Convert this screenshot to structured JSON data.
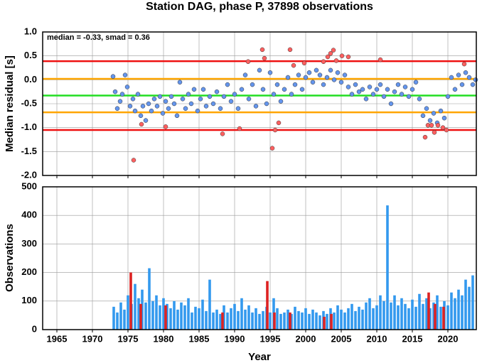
{
  "chart_data": [
    {
      "type": "scatter",
      "title": "Station DAG, phase P, 37898 observations",
      "ylabel": "Median residual [s]",
      "annotation": "median = -0.33, smad = 0.36",
      "xlim": [
        1963,
        2024
      ],
      "xticks": [
        1965,
        1970,
        1975,
        1980,
        1985,
        1990,
        1995,
        2000,
        2005,
        2010,
        2015,
        2020
      ],
      "ylim": [
        -2,
        1
      ],
      "yticks": [
        {
          "value": -2,
          "label": "-2.0"
        },
        {
          "value": -1.5,
          "label": "-1.5"
        },
        {
          "value": -1,
          "label": "-1.0"
        },
        {
          "value": -0.5,
          "label": "-0.5"
        },
        {
          "value": 0,
          "label": "0.0"
        },
        {
          "value": 0.5,
          "label": "0.5"
        },
        {
          "value": 1,
          "label": "1.0"
        }
      ],
      "grid": true,
      "hlines": [
        {
          "value": 0.39,
          "color": "#ee1111"
        },
        {
          "value": 0.02,
          "color": "#ffa500"
        },
        {
          "value": -0.33,
          "color": "#22dd22"
        },
        {
          "value": -0.68,
          "color": "#ffa500"
        },
        {
          "value": -1.05,
          "color": "#ee1111"
        }
      ],
      "series": [
        {
          "color": "#6495ed",
          "x": [
            1972.9,
            1973.2,
            1973.5,
            1973.9,
            1974.2,
            1974.6,
            1974.9,
            1975.3,
            1975.7,
            1976.0,
            1976.4,
            1976.8,
            1977.1,
            1977.5,
            1977.9,
            1978.3,
            1978.7,
            1979.1,
            1979.5,
            1979.9,
            1980.3,
            1980.7,
            1981.1,
            1981.5,
            1981.9,
            1982.3,
            1982.7,
            1983.1,
            1983.5,
            1983.9,
            1984.3,
            1984.8,
            1985.2,
            1985.6,
            1986.0,
            1986.5,
            1987.0,
            1987.5,
            1988.0,
            1988.5,
            1989.0,
            1989.5,
            1990.0,
            1990.5,
            1991.0,
            1991.5,
            1992.0,
            1992.5,
            1993.0,
            1993.5,
            1994.0,
            1994.5,
            1995.0,
            1995.5,
            1996.0,
            1996.5,
            1997.0,
            1997.5,
            1998.0,
            1998.5,
            1999.0,
            1999.5,
            2000.0,
            2000.5,
            2001.0,
            2001.5,
            2002.0,
            2002.5,
            2003.0,
            2003.5,
            2004.0,
            2004.5,
            2005.0,
            2005.5,
            2006.0,
            2006.5,
            2007.0,
            2007.5,
            2008.0,
            2008.5,
            2009.0,
            2009.5,
            2010.0,
            2010.5,
            2011.0,
            2011.5,
            2012.0,
            2012.5,
            2013.0,
            2013.5,
            2014.0,
            2014.5,
            2015.0,
            2015.5,
            2016.0,
            2016.5,
            2017.0,
            2017.5,
            2018.0,
            2018.5,
            2019.0,
            2019.5,
            2020.0,
            2020.5,
            2021.0,
            2021.5,
            2022.0,
            2022.5,
            2023.0,
            2023.5,
            2023.9
          ],
          "values": [
            0.07,
            -0.25,
            -0.6,
            -0.45,
            -0.3,
            0.1,
            -0.15,
            -0.55,
            -0.4,
            -0.65,
            -0.3,
            -0.75,
            -0.55,
            -0.85,
            -0.5,
            -0.65,
            -0.4,
            -0.55,
            -0.35,
            -0.7,
            -0.45,
            -0.6,
            -0.35,
            -0.5,
            -0.75,
            -0.05,
            -0.4,
            -0.6,
            -0.3,
            -0.5,
            -0.2,
            -0.65,
            -0.4,
            -0.2,
            -0.55,
            -0.35,
            -0.5,
            -0.25,
            -0.6,
            -0.35,
            -0.1,
            -0.45,
            -0.3,
            -0.6,
            -0.2,
            0.1,
            -0.4,
            -0.1,
            -0.55,
            0.2,
            -0.2,
            -0.5,
            0.15,
            -0.3,
            -0.1,
            -0.45,
            -0.2,
            0.05,
            -0.3,
            -0.1,
            0.1,
            -0.2,
            0.05,
            0.15,
            -0.05,
            0.2,
            0.1,
            -0.1,
            0.05,
            0.2,
            0.0,
            0.15,
            -0.05,
            0.1,
            -0.15,
            -0.3,
            -0.1,
            -0.25,
            -0.2,
            -0.4,
            -0.15,
            -0.3,
            -0.2,
            -0.1,
            -0.35,
            -0.2,
            -0.5,
            -0.25,
            -0.1,
            -0.3,
            -0.15,
            -0.35,
            -0.2,
            -0.05,
            -0.4,
            -0.75,
            -0.6,
            -0.85,
            -0.7,
            -0.9,
            -0.65,
            -0.8,
            -0.35,
            0.05,
            -0.2,
            0.1,
            -0.1,
            0.15,
            0.05,
            -0.1,
            0.0
          ]
        },
        {
          "color": "#ff6060",
          "x": [
            1975.8,
            1976.9,
            1980.3,
            1988.3,
            1990.7,
            1991.9,
            1993.9,
            1994.2,
            1995.3,
            1995.7,
            1996.2,
            1997.8,
            1998.3,
            1999.8,
            2002.5,
            2003.1,
            2003.5,
            2003.9,
            2004.3,
            2005.1,
            2006.0,
            2010.5,
            2016.8,
            2017.2,
            2017.7,
            2018.1,
            2018.6,
            2019.3,
            2019.8,
            2022.3
          ],
          "values": [
            -1.68,
            -0.93,
            -0.98,
            -1.13,
            -1.02,
            0.38,
            0.63,
            0.45,
            -1.43,
            -1.05,
            -0.9,
            0.63,
            0.3,
            0.35,
            0.38,
            0.48,
            0.55,
            0.62,
            0.4,
            0.5,
            0.48,
            0.42,
            -1.2,
            -0.95,
            -0.95,
            -1.1,
            -0.95,
            -1.0,
            -1.05,
            0.33
          ]
        }
      ]
    },
    {
      "type": "bar",
      "ylabel": "Observations",
      "xlabel": "Year",
      "xlim": [
        1963,
        2024
      ],
      "xticks": [
        1965,
        1970,
        1975,
        1980,
        1985,
        1990,
        1995,
        2000,
        2005,
        2010,
        2015,
        2020
      ],
      "ylim": [
        0,
        500
      ],
      "yticks": [
        0,
        100,
        200,
        300,
        400,
        500
      ],
      "grid": true,
      "series": [
        {
          "color": "#3399ee",
          "x": [
            1973.0,
            1973.5,
            1974.0,
            1974.5,
            1975.0,
            1975.5,
            1976.0,
            1976.5,
            1977.0,
            1977.5,
            1978.0,
            1978.5,
            1979.0,
            1979.5,
            1980.0,
            1980.5,
            1981.0,
            1981.5,
            1982.0,
            1982.5,
            1983.0,
            1983.5,
            1984.0,
            1984.5,
            1985.0,
            1985.5,
            1986.0,
            1986.5,
            1987.0,
            1987.5,
            1988.0,
            1988.5,
            1989.0,
            1989.5,
            1990.0,
            1990.5,
            1991.0,
            1991.5,
            1992.0,
            1992.5,
            1993.0,
            1993.5,
            1994.0,
            1994.5,
            1995.0,
            1995.5,
            1996.0,
            1996.5,
            1997.0,
            1997.5,
            1998.0,
            1998.5,
            1999.0,
            1999.5,
            2000.0,
            2000.5,
            2001.0,
            2001.5,
            2002.0,
            2002.5,
            2003.0,
            2003.5,
            2004.0,
            2004.5,
            2005.0,
            2005.5,
            2006.0,
            2006.5,
            2007.0,
            2007.5,
            2008.0,
            2008.5,
            2009.0,
            2009.5,
            2010.0,
            2010.5,
            2011.0,
            2011.5,
            2012.0,
            2012.5,
            2013.0,
            2013.5,
            2014.0,
            2014.5,
            2015.0,
            2015.5,
            2016.0,
            2016.5,
            2017.0,
            2017.5,
            2018.0,
            2018.5,
            2019.0,
            2019.5,
            2020.0,
            2020.5,
            2021.0,
            2021.5,
            2022.0,
            2022.5,
            2023.0,
            2023.5
          ],
          "values": [
            80,
            60,
            95,
            70,
            120,
            90,
            160,
            110,
            140,
            95,
            215,
            100,
            120,
            85,
            110,
            90,
            75,
            100,
            70,
            95,
            85,
            110,
            60,
            80,
            75,
            105,
            65,
            175,
            60,
            70,
            55,
            85,
            60,
            75,
            90,
            65,
            110,
            70,
            85,
            60,
            75,
            55,
            65,
            80,
            60,
            110,
            75,
            55,
            60,
            70,
            55,
            80,
            65,
            60,
            75,
            55,
            70,
            60,
            50,
            65,
            55,
            75,
            60,
            85,
            70,
            60,
            75,
            90,
            65,
            80,
            70,
            95,
            110,
            75,
            85,
            120,
            100,
            435,
            95,
            120,
            85,
            110,
            90,
            75,
            105,
            80,
            125,
            90,
            110,
            75,
            95,
            120,
            80,
            100,
            85,
            130,
            110,
            140,
            120,
            175,
            150,
            190
          ]
        },
        {
          "color": "#dd2222",
          "x": [
            1975.4,
            1976.8,
            1980.3,
            1988.3,
            1994.6,
            1995.6,
            1997.8,
            2002.6,
            2003.6,
            2017.3,
            2018.2,
            2019.4
          ],
          "values": [
            200,
            90,
            85,
            60,
            170,
            60,
            60,
            45,
            55,
            130,
            90,
            80
          ]
        }
      ]
    }
  ]
}
